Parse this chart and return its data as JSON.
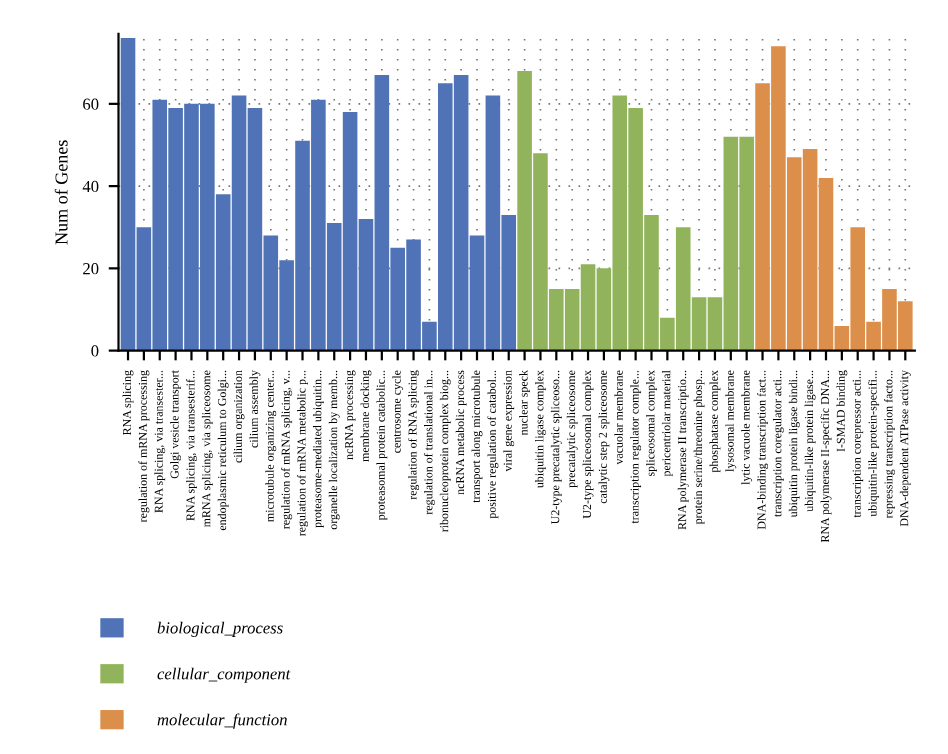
{
  "chart_data": {
    "type": "bar",
    "ylabel": "Num of Genes",
    "categories": [
      "RNA splicing",
      "regulation of mRNA processing",
      "RNA splicing, via transester...",
      "Golgi vesicle transport",
      "RNA splicing, via transesterif...",
      "mRNA splicing, via spliceosome",
      "endoplasmic reticulum to Golgi...",
      "cilium organization",
      "cilium assembly",
      "microtubule organizing center...",
      "regulation of mRNA splicing, v...",
      "regulation of mRNA metabolic p...",
      "proteasome-mediated ubiquitin...",
      "organelle localization by memb...",
      "ncRNA processing",
      "membrane docking",
      "proteasomal protein catabolic...",
      "centrosome cycle",
      "regulation of RNA splicing",
      "regulation of translational in...",
      "ribonucleoprotein complex biog...",
      "ncRNA metabolic process",
      "transport along microtubule",
      "positive regulation of catabol...",
      "viral gene expression",
      "nuclear speck",
      "ubiquitin ligase complex",
      "U2-type precatalytic spliceoso...",
      "precatalytic spliceosome",
      "U2-type spliceosomal complex",
      "catalytic step 2 spliceosome",
      "vacuolar membrane",
      "transcription regulator comple...",
      "spliceosomal complex",
      "pericentriolar material",
      "RNA polymerase II transcriptio...",
      "protein serine/threonine phosp...",
      "phosphatase complex",
      "lysosomal membrane",
      "lytic vacuole membrane",
      "DNA-binding transcription fact...",
      "transcription coregulator acti...",
      "ubiquitin protein ligase bindi...",
      "ubiquitin-like protein ligase...",
      "RNA polymerase II-specific DNA...",
      "I-SMAD binding",
      "transcription corepressor acti...",
      "ubiquitin-like protein-specifi...",
      "repressing transcription facto...",
      "DNA-dependent ATPase activity"
    ],
    "series": [
      {
        "name": "biological_process",
        "color": "#4f73b6",
        "values": [
          76,
          30,
          61,
          59,
          60,
          60,
          38,
          62,
          59,
          28,
          22,
          51,
          61,
          31,
          58,
          32,
          67,
          25,
          27,
          7,
          65,
          67,
          28,
          62,
          33,
          null,
          null,
          null,
          null,
          null,
          null,
          null,
          null,
          null,
          null,
          null,
          null,
          null,
          null,
          null,
          null,
          null,
          null,
          null,
          null,
          null,
          null,
          null,
          null,
          null
        ]
      },
      {
        "name": "cellular_component",
        "color": "#91b35b",
        "values": [
          null,
          null,
          null,
          null,
          null,
          null,
          null,
          null,
          null,
          null,
          null,
          null,
          null,
          null,
          null,
          null,
          null,
          null,
          null,
          null,
          null,
          null,
          null,
          null,
          null,
          68,
          48,
          15,
          15,
          21,
          20,
          62,
          59,
          33,
          8,
          30,
          13,
          13,
          52,
          52,
          null,
          null,
          null,
          null,
          null,
          null,
          null,
          null,
          null,
          null
        ]
      },
      {
        "name": "molecular_function",
        "color": "#dc8e4b",
        "values": [
          null,
          null,
          null,
          null,
          null,
          null,
          null,
          null,
          null,
          null,
          null,
          null,
          null,
          null,
          null,
          null,
          null,
          null,
          null,
          null,
          null,
          null,
          null,
          null,
          null,
          null,
          null,
          null,
          null,
          null,
          null,
          null,
          null,
          null,
          null,
          null,
          null,
          null,
          null,
          null,
          65,
          74,
          47,
          49,
          42,
          6,
          30,
          7,
          15,
          12
        ]
      }
    ],
    "ylim": [
      0,
      77
    ],
    "yticks": [
      0,
      20,
      40,
      60
    ],
    "grid": true,
    "legend": "bottom left"
  }
}
